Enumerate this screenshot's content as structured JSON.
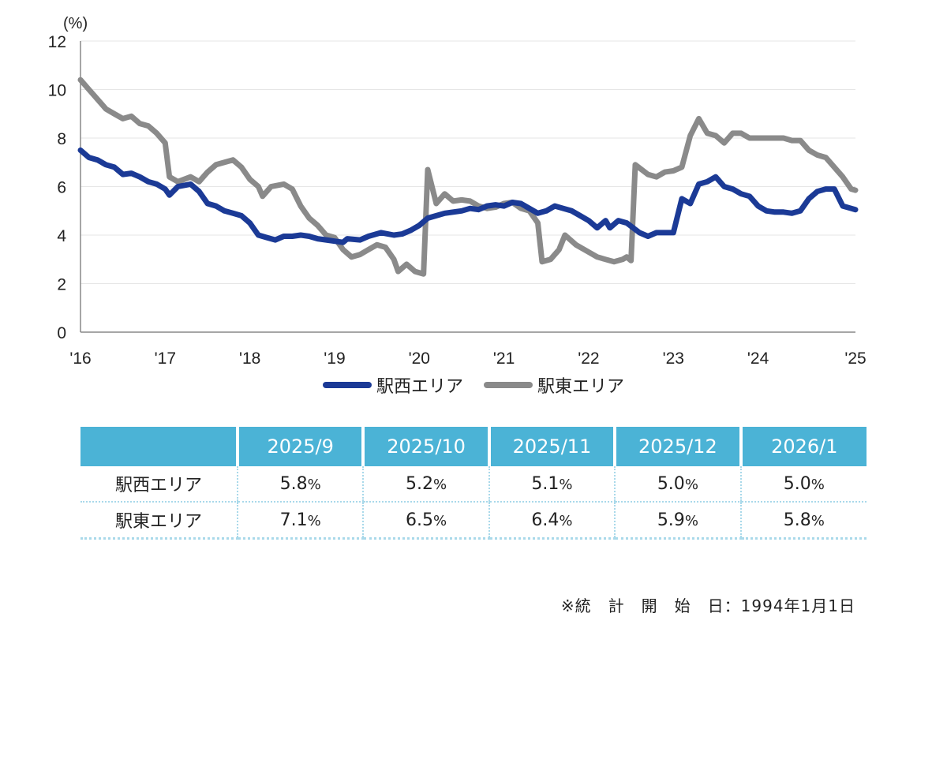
{
  "chart_data": {
    "type": "line",
    "ylabel": "(%)",
    "ylim": [
      0,
      12
    ],
    "yticks": [
      "0",
      "2",
      "4",
      "6",
      "8",
      "10",
      "12"
    ],
    "xlim": [
      2016.0,
      2025.15
    ],
    "xticks": [
      {
        "label": "'16",
        "x": 2016
      },
      {
        "label": "'17",
        "x": 2017
      },
      {
        "label": "'18",
        "x": 2018
      },
      {
        "label": "'19",
        "x": 2019
      },
      {
        "label": "'20",
        "x": 2020
      },
      {
        "label": "'21",
        "x": 2021
      },
      {
        "label": "'22",
        "x": 2022
      },
      {
        "label": "'23",
        "x": 2023
      },
      {
        "label": "'24",
        "x": 2024
      },
      {
        "label": "'25",
        "x": 2025.15
      }
    ],
    "grid": "horizontal",
    "legend_position": "bottom",
    "series": [
      {
        "name": "駅西エリア",
        "color": "#1b3a96",
        "points": [
          [
            2016.0,
            7.5
          ],
          [
            2016.1,
            7.2
          ],
          [
            2016.2,
            7.1
          ],
          [
            2016.3,
            6.9
          ],
          [
            2016.4,
            6.8
          ],
          [
            2016.5,
            6.5
          ],
          [
            2016.6,
            6.55
          ],
          [
            2016.7,
            6.4
          ],
          [
            2016.8,
            6.2
          ],
          [
            2016.9,
            6.1
          ],
          [
            2017.0,
            5.9
          ],
          [
            2017.05,
            5.65
          ],
          [
            2017.15,
            6.0
          ],
          [
            2017.3,
            6.1
          ],
          [
            2017.4,
            5.8
          ],
          [
            2017.5,
            5.3
          ],
          [
            2017.6,
            5.2
          ],
          [
            2017.7,
            5.0
          ],
          [
            2017.8,
            4.9
          ],
          [
            2017.9,
            4.8
          ],
          [
            2018.0,
            4.5
          ],
          [
            2018.1,
            4.0
          ],
          [
            2018.2,
            3.9
          ],
          [
            2018.3,
            3.8
          ],
          [
            2018.4,
            3.95
          ],
          [
            2018.5,
            3.95
          ],
          [
            2018.6,
            4.0
          ],
          [
            2018.7,
            3.95
          ],
          [
            2018.8,
            3.85
          ],
          [
            2018.9,
            3.8
          ],
          [
            2019.0,
            3.75
          ],
          [
            2019.1,
            3.7
          ],
          [
            2019.15,
            3.85
          ],
          [
            2019.3,
            3.8
          ],
          [
            2019.4,
            3.95
          ],
          [
            2019.55,
            4.1
          ],
          [
            2019.7,
            4.0
          ],
          [
            2019.8,
            4.05
          ],
          [
            2019.9,
            4.2
          ],
          [
            2020.0,
            4.4
          ],
          [
            2020.1,
            4.7
          ],
          [
            2020.2,
            4.8
          ],
          [
            2020.3,
            4.9
          ],
          [
            2020.4,
            4.95
          ],
          [
            2020.5,
            5.0
          ],
          [
            2020.6,
            5.1
          ],
          [
            2020.7,
            5.05
          ],
          [
            2020.8,
            5.2
          ],
          [
            2020.9,
            5.25
          ],
          [
            2021.0,
            5.2
          ],
          [
            2021.1,
            5.35
          ],
          [
            2021.2,
            5.3
          ],
          [
            2021.3,
            5.1
          ],
          [
            2021.4,
            4.9
          ],
          [
            2021.5,
            5.0
          ],
          [
            2021.6,
            5.2
          ],
          [
            2021.7,
            5.1
          ],
          [
            2021.8,
            5.0
          ],
          [
            2021.9,
            4.8
          ],
          [
            2022.0,
            4.6
          ],
          [
            2022.1,
            4.3
          ],
          [
            2022.2,
            4.6
          ],
          [
            2022.25,
            4.3
          ],
          [
            2022.35,
            4.6
          ],
          [
            2022.45,
            4.5
          ],
          [
            2022.6,
            4.1
          ],
          [
            2022.7,
            3.95
          ],
          [
            2022.8,
            4.1
          ],
          [
            2022.9,
            4.1
          ],
          [
            2023.0,
            4.1
          ],
          [
            2023.1,
            5.5
          ],
          [
            2023.2,
            5.3
          ],
          [
            2023.3,
            6.1
          ],
          [
            2023.4,
            6.2
          ],
          [
            2023.5,
            6.4
          ],
          [
            2023.6,
            6.0
          ],
          [
            2023.7,
            5.9
          ],
          [
            2023.8,
            5.7
          ],
          [
            2023.9,
            5.6
          ],
          [
            2024.0,
            5.2
          ],
          [
            2024.1,
            5.0
          ],
          [
            2024.2,
            4.95
          ],
          [
            2024.3,
            4.95
          ],
          [
            2024.4,
            4.9
          ],
          [
            2024.5,
            5.0
          ],
          [
            2024.6,
            5.5
          ],
          [
            2024.7,
            5.8
          ],
          [
            2024.8,
            5.9
          ],
          [
            2024.9,
            5.9
          ],
          [
            2025.0,
            5.2
          ],
          [
            2025.1,
            5.1
          ],
          [
            2025.15,
            5.05
          ]
        ]
      },
      {
        "name": "駅東エリア",
        "color": "#8a8a8a",
        "points": [
          [
            2016.0,
            10.4
          ],
          [
            2016.1,
            10.0
          ],
          [
            2016.2,
            9.6
          ],
          [
            2016.3,
            9.2
          ],
          [
            2016.4,
            9.0
          ],
          [
            2016.5,
            8.8
          ],
          [
            2016.6,
            8.9
          ],
          [
            2016.7,
            8.6
          ],
          [
            2016.8,
            8.5
          ],
          [
            2016.9,
            8.2
          ],
          [
            2017.0,
            7.8
          ],
          [
            2017.05,
            6.4
          ],
          [
            2017.15,
            6.2
          ],
          [
            2017.3,
            6.4
          ],
          [
            2017.4,
            6.2
          ],
          [
            2017.5,
            6.6
          ],
          [
            2017.6,
            6.9
          ],
          [
            2017.7,
            7.0
          ],
          [
            2017.8,
            7.1
          ],
          [
            2017.9,
            6.8
          ],
          [
            2018.0,
            6.3
          ],
          [
            2018.1,
            6.0
          ],
          [
            2018.15,
            5.6
          ],
          [
            2018.25,
            6.0
          ],
          [
            2018.4,
            6.1
          ],
          [
            2018.5,
            5.9
          ],
          [
            2018.6,
            5.2
          ],
          [
            2018.7,
            4.7
          ],
          [
            2018.8,
            4.4
          ],
          [
            2018.9,
            4.0
          ],
          [
            2019.0,
            3.9
          ],
          [
            2019.1,
            3.4
          ],
          [
            2019.2,
            3.1
          ],
          [
            2019.3,
            3.2
          ],
          [
            2019.4,
            3.4
          ],
          [
            2019.5,
            3.6
          ],
          [
            2019.6,
            3.5
          ],
          [
            2019.7,
            3.0
          ],
          [
            2019.75,
            2.5
          ],
          [
            2019.85,
            2.8
          ],
          [
            2019.95,
            2.5
          ],
          [
            2020.05,
            2.4
          ],
          [
            2020.1,
            6.7
          ],
          [
            2020.2,
            5.3
          ],
          [
            2020.3,
            5.7
          ],
          [
            2020.4,
            5.4
          ],
          [
            2020.5,
            5.45
          ],
          [
            2020.6,
            5.4
          ],
          [
            2020.7,
            5.2
          ],
          [
            2020.8,
            5.1
          ],
          [
            2020.9,
            5.15
          ],
          [
            2021.0,
            5.3
          ],
          [
            2021.1,
            5.35
          ],
          [
            2021.2,
            5.1
          ],
          [
            2021.3,
            5.0
          ],
          [
            2021.4,
            4.5
          ],
          [
            2021.45,
            2.9
          ],
          [
            2021.55,
            3.0
          ],
          [
            2021.65,
            3.4
          ],
          [
            2021.72,
            4.0
          ],
          [
            2021.85,
            3.6
          ],
          [
            2022.0,
            3.3
          ],
          [
            2022.1,
            3.1
          ],
          [
            2022.2,
            3.0
          ],
          [
            2022.3,
            2.9
          ],
          [
            2022.4,
            3.0
          ],
          [
            2022.45,
            3.1
          ],
          [
            2022.5,
            2.95
          ],
          [
            2022.55,
            6.9
          ],
          [
            2022.7,
            6.5
          ],
          [
            2022.8,
            6.4
          ],
          [
            2022.9,
            6.6
          ],
          [
            2023.0,
            6.65
          ],
          [
            2023.1,
            6.8
          ],
          [
            2023.2,
            8.1
          ],
          [
            2023.3,
            8.8
          ],
          [
            2023.4,
            8.2
          ],
          [
            2023.5,
            8.1
          ],
          [
            2023.6,
            7.8
          ],
          [
            2023.7,
            8.2
          ],
          [
            2023.8,
            8.2
          ],
          [
            2023.9,
            8.0
          ],
          [
            2024.0,
            8.0
          ],
          [
            2024.1,
            8.0
          ],
          [
            2024.3,
            8.0
          ],
          [
            2024.4,
            7.9
          ],
          [
            2024.5,
            7.9
          ],
          [
            2024.6,
            7.5
          ],
          [
            2024.7,
            7.3
          ],
          [
            2024.8,
            7.2
          ],
          [
            2024.9,
            6.8
          ],
          [
            2025.0,
            6.4
          ],
          [
            2025.1,
            5.9
          ],
          [
            2025.15,
            5.85
          ]
        ]
      }
    ]
  },
  "table": {
    "headers": [
      "",
      "2025/9",
      "2025/10",
      "2025/11",
      "2025/12",
      "2026/1"
    ],
    "rows": [
      {
        "label": "駅西エリア",
        "values": [
          "5.8",
          "5.2",
          "5.1",
          "5.0",
          "5.0"
        ]
      },
      {
        "label": "駅東エリア",
        "values": [
          "7.1",
          "6.5",
          "6.4",
          "5.9",
          "5.8"
        ]
      }
    ],
    "unit": "%"
  },
  "note": "※統　計　開　始　日：1994年1月1日"
}
